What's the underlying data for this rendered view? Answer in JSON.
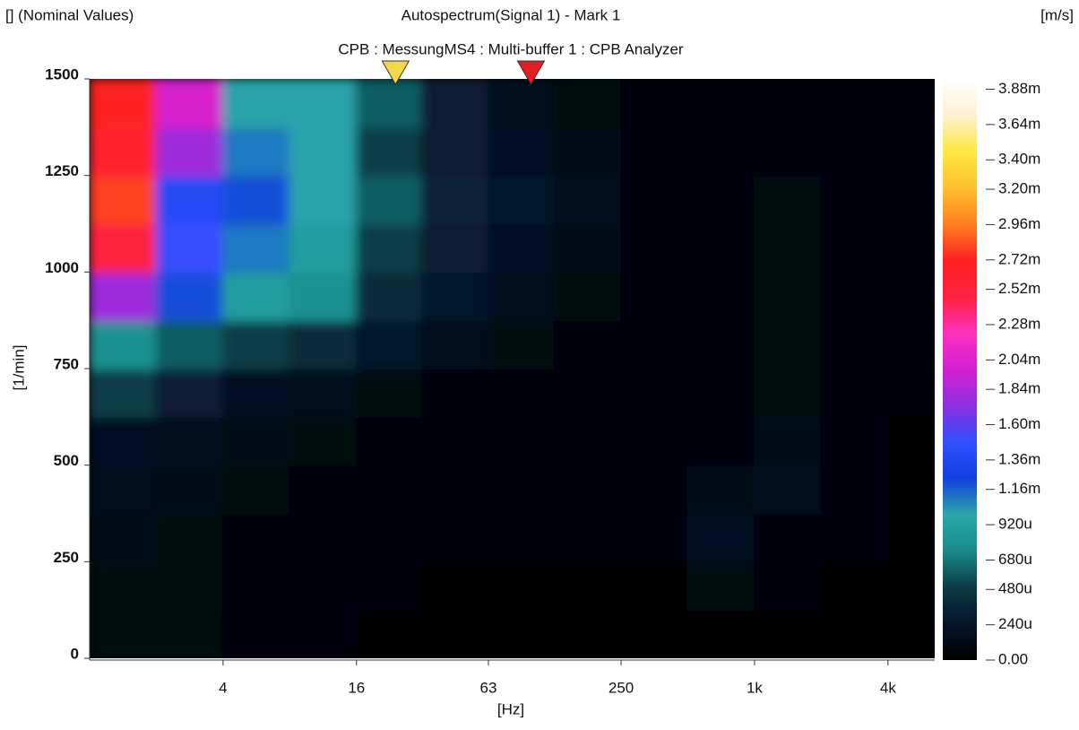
{
  "chart_data": {
    "type": "heatmap",
    "corner_label": "[] (Nominal Values)",
    "title": "Autospectrum(Signal 1) - Mark 1",
    "subtitle": "CPB : MessungMS4 : Multi-buffer 1 : CPB Analyzer",
    "unit_label": "[m/s]",
    "x_label": "[Hz]",
    "y_label": "[1/min]",
    "x_log": true,
    "xlim": [
      1,
      6500
    ],
    "xticks": [
      4,
      16,
      63,
      250,
      {
        "value": 1000,
        "label": "1k"
      },
      {
        "value": 4000,
        "label": "4k"
      }
    ],
    "ylim": [
      0,
      1500
    ],
    "yticks": [
      0,
      250,
      500,
      750,
      1000,
      1250,
      1500
    ],
    "x_bins": [
      1,
      2,
      4,
      8,
      16,
      31.5,
      63,
      125,
      250,
      500,
      1000,
      2000,
      4000,
      6500
    ],
    "y_bins": [
      0,
      125,
      250,
      375,
      500,
      625,
      750,
      875,
      1000,
      1125,
      1250,
      1375,
      1500
    ],
    "values": [
      [
        0.0001,
        0.0001,
        5e-05,
        5e-05,
        3e-05,
        3e-05,
        2e-05,
        2e-05,
        2e-05,
        2e-05,
        2e-05,
        2e-05,
        1e-05
      ],
      [
        0.0001,
        0.0001,
        8e-05,
        5e-05,
        4e-05,
        3e-05,
        3e-05,
        3e-05,
        3e-05,
        0.0001,
        4e-05,
        3e-05,
        2e-05
      ],
      [
        0.00012,
        0.0001,
        8e-05,
        6e-05,
        5e-05,
        4e-05,
        4e-05,
        4e-05,
        4e-05,
        0.0002,
        6e-05,
        4e-05,
        2e-05
      ],
      [
        0.00015,
        0.00012,
        0.0001,
        8e-05,
        6e-05,
        5e-05,
        5e-05,
        5e-05,
        5e-05,
        0.00012,
        0.00015,
        5e-05,
        3e-05
      ],
      [
        0.0002,
        0.00015,
        0.00012,
        0.0001,
        8e-05,
        6e-05,
        8e-05,
        6e-05,
        5e-05,
        6e-05,
        0.00012,
        5e-05,
        3e-05
      ],
      [
        0.0005,
        0.0003,
        0.0002,
        0.00015,
        0.0001,
        8e-05,
        8e-05,
        6e-05,
        5e-05,
        5e-05,
        0.0001,
        8e-05,
        4e-05
      ],
      [
        0.0008,
        0.0006,
        0.0005,
        0.0004,
        0.00025,
        0.00015,
        0.0001,
        8e-05,
        6e-05,
        5e-05,
        0.0001,
        8e-05,
        4e-05
      ],
      [
        0.0018,
        0.0012,
        0.0009,
        0.0008,
        0.0004,
        0.00025,
        0.00015,
        0.0001,
        6e-05,
        5e-05,
        0.0001,
        8e-05,
        5e-05
      ],
      [
        0.0025,
        0.0015,
        0.0011,
        0.0009,
        0.0005,
        0.0003,
        0.0002,
        0.00012,
        7e-05,
        5e-05,
        0.0001,
        8e-05,
        5e-05
      ],
      [
        0.0028,
        0.0014,
        0.0012,
        0.001,
        0.0006,
        0.00035,
        0.00025,
        0.00015,
        8e-05,
        6e-05,
        0.0001,
        8e-05,
        8e-05
      ],
      [
        0.0026,
        0.0018,
        0.0011,
        0.001,
        0.0005,
        0.0003,
        0.0002,
        0.00012,
        8e-05,
        5e-05,
        6e-05,
        5e-05,
        5e-05
      ],
      [
        0.0027,
        0.002,
        0.001,
        0.001,
        0.0006,
        0.0003,
        0.00015,
        0.0001,
        7e-05,
        5e-05,
        5e-05,
        5e-05,
        6e-05
      ]
    ],
    "clim": [
      0,
      0.00395
    ],
    "colormap": [
      "#000000",
      "#06142a",
      "#0b3b44",
      "#1a8a8a",
      "#2aa8a8",
      "#1040e0",
      "#3050ff",
      "#8a30e0",
      "#d020d0",
      "#ff30c0",
      "#ff2040",
      "#ff2020",
      "#ff8020",
      "#ffc030",
      "#ffe840",
      "#fff0d0",
      "#ffffff"
    ],
    "cticks": [
      {
        "value": 0.00388,
        "label": "3.88m"
      },
      {
        "value": 0.00364,
        "label": "3.64m"
      },
      {
        "value": 0.0034,
        "label": "3.40m"
      },
      {
        "value": 0.0032,
        "label": "3.20m"
      },
      {
        "value": 0.00296,
        "label": "2.96m"
      },
      {
        "value": 0.00272,
        "label": "2.72m"
      },
      {
        "value": 0.00252,
        "label": "2.52m"
      },
      {
        "value": 0.00228,
        "label": "2.28m"
      },
      {
        "value": 0.00204,
        "label": "2.04m"
      },
      {
        "value": 0.00184,
        "label": "1.84m"
      },
      {
        "value": 0.0016,
        "label": "1.60m"
      },
      {
        "value": 0.00136,
        "label": "1.36m"
      },
      {
        "value": 0.00116,
        "label": "1.16m"
      },
      {
        "value": 0.00092,
        "label": "920u"
      },
      {
        "value": 0.00068,
        "label": "680u"
      },
      {
        "value": 0.00048,
        "label": "480u"
      },
      {
        "value": 0.00024,
        "label": "240u"
      },
      {
        "value": 0,
        "label": "0.00"
      }
    ],
    "markers": [
      {
        "x": 24,
        "color": "#f5d84a"
      },
      {
        "x": 98,
        "color": "#e02020"
      }
    ]
  }
}
